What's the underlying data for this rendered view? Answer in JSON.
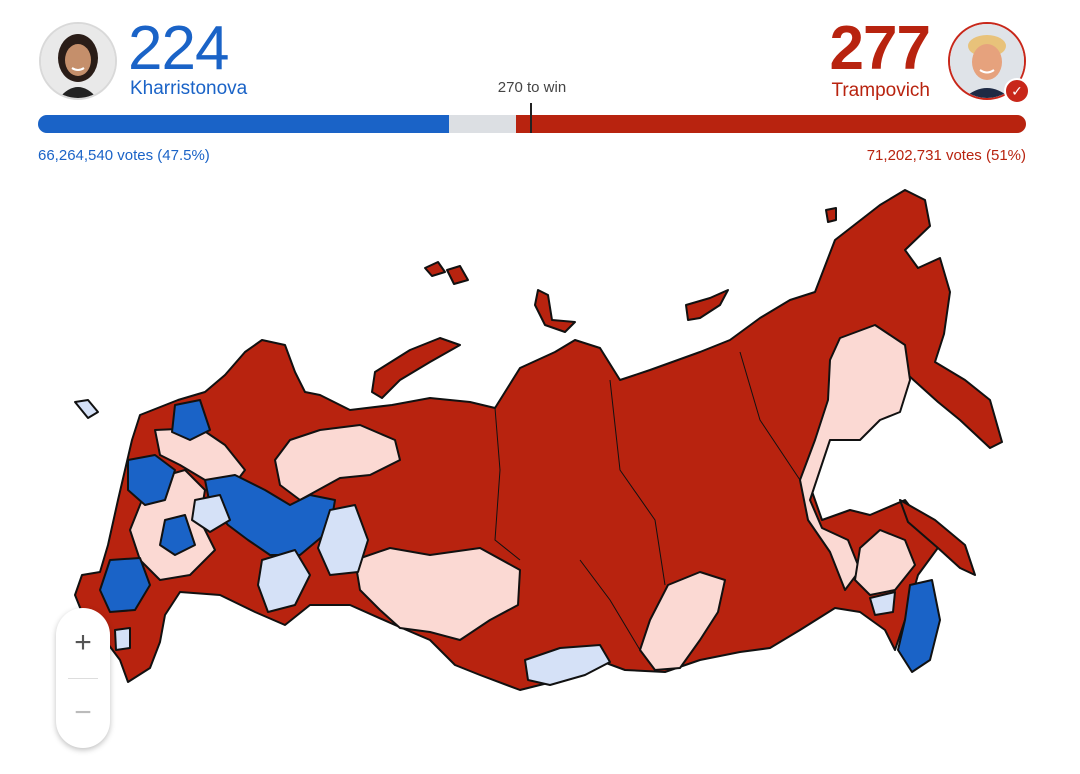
{
  "candidates": {
    "dem": {
      "name": "Kharristonova",
      "electoral_votes": "224",
      "popular": "66,264,540 votes (47.5%)",
      "color": "#1a63c7",
      "avatar_icon": "candidate-portrait-icon"
    },
    "rep": {
      "name": "Trampovich",
      "electoral_votes": "277",
      "popular": "71,202,731 votes (51%)",
      "color": "#b8230f",
      "avatar_icon": "candidate-portrait-icon",
      "winner_badge": "✓"
    }
  },
  "threshold": {
    "label": "270 to win"
  },
  "bar": {
    "dem_share": 0.416,
    "rep_share": 0.516
  },
  "map": {
    "legend_colors": {
      "strong_rep": "#b8230f",
      "lean_rep": "#fbd9d3",
      "strong_dem": "#1a63c7",
      "lean_dem": "#d5e1f7"
    }
  },
  "zoom": {
    "in_label": "+",
    "out_label": "−"
  }
}
